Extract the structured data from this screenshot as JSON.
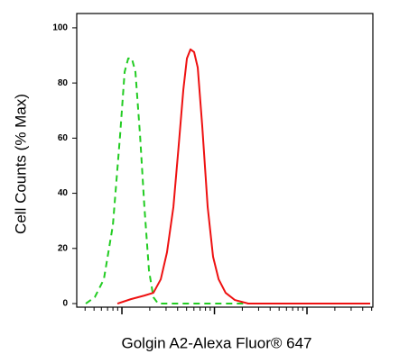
{
  "chart_data": {
    "type": "line",
    "xlabel": "Golgin A2-Alexa Fluor® 647",
    "ylabel": "Cell Counts (% Max)",
    "xscale": "log",
    "xlim": [
      3.25,
      5150
    ],
    "ylim": [
      -1.3,
      105.2
    ],
    "yticks": [
      0,
      20,
      40,
      60,
      80,
      100
    ],
    "xticks": [
      10,
      100,
      1000
    ],
    "xminor_ticks": [
      4,
      5,
      6,
      7,
      8,
      9,
      20,
      30,
      40,
      50,
      60,
      70,
      80,
      90,
      200,
      300,
      400,
      500,
      600,
      700,
      800,
      900,
      2000,
      3000,
      4000,
      5000
    ],
    "xtick_labels": false,
    "series": [
      {
        "color": "#22cc22",
        "dash": true,
        "x": [
          4.07,
          5.09,
          6.38,
          7.99,
          9.56,
          10.7,
          11.7,
          12.8,
          14.0,
          15.7,
          17.5,
          19.6,
          21.9,
          24.6,
          407
        ],
        "values": [
          0,
          2.3,
          8.8,
          28.4,
          61.1,
          84.0,
          88.9,
          88.9,
          84.0,
          61.1,
          35.0,
          12.1,
          2.3,
          0,
          0
        ]
      },
      {
        "color": "#ee1111",
        "dash": false,
        "x": [
          8.94,
          12.5,
          17.5,
          21.9,
          26.3,
          30.7,
          36.0,
          41.2,
          46.1,
          50.4,
          55.1,
          60.3,
          66.0,
          73.8,
          84.5,
          96.6,
          111,
          132,
          166,
          232,
          4820
        ],
        "values": [
          0,
          1.6,
          2.9,
          3.9,
          8.8,
          18.6,
          35.0,
          57.8,
          77.5,
          88.9,
          92.2,
          91.2,
          85.6,
          64.4,
          35.0,
          17.0,
          8.8,
          3.9,
          1.3,
          0,
          0
        ]
      }
    ]
  }
}
